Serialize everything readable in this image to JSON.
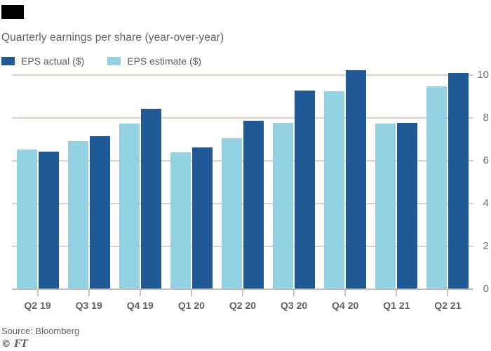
{
  "header": {
    "title": "Quarterly earnings per share (year-over-year)"
  },
  "legend": [
    {
      "label": "EPS actual ($)",
      "color": "#1f5a96",
      "swatch_icon": "square-swatch"
    },
    {
      "label": "EPS estimate ($)",
      "color": "#92d2e3",
      "swatch_icon": "square-swatch"
    }
  ],
  "footer": {
    "source": "Source: Bloomberg",
    "credit": "© FT"
  },
  "colors": {
    "actual": "#1f5a96",
    "estimate": "#92d2e3",
    "gridline": "#ddd2c4",
    "axis_line": "#c7bcad",
    "text": "#66605b",
    "brand_tab": "#000000",
    "background": "#ffffff"
  },
  "chart_data": {
    "type": "bar",
    "title": "Quarterly earnings per share (year-over-year)",
    "categories": [
      "Q2 19",
      "Q3 19",
      "Q4 19",
      "Q1 20",
      "Q2 20",
      "Q3 20",
      "Q4 20",
      "Q1 21",
      "Q2 21"
    ],
    "series": [
      {
        "name": "EPS estimate ($)",
        "color": "#92d2e3",
        "values": [
          6.5,
          6.9,
          7.7,
          6.35,
          7.0,
          7.75,
          9.2,
          7.7,
          9.45
        ]
      },
      {
        "name": "EPS actual ($)",
        "color": "#1f5a96",
        "values": [
          6.4,
          7.1,
          8.4,
          6.6,
          7.85,
          9.25,
          10.2,
          7.75,
          10.05
        ]
      }
    ],
    "bar_order": "estimate left, actual right",
    "xlabel": "",
    "ylabel": "",
    "ylim": [
      0,
      10
    ],
    "yticks": [
      0,
      2,
      4,
      6,
      8,
      10
    ],
    "y_axis_position": "right",
    "grid": true,
    "legend_position": "top-left"
  }
}
